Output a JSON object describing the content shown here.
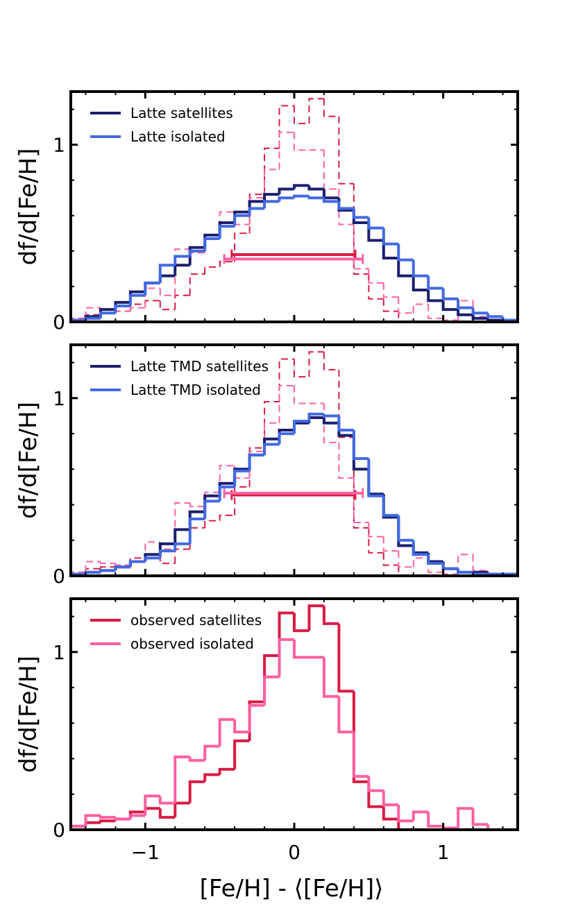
{
  "chart_data": [
    {
      "type": "step-histogram",
      "panel": "top",
      "xlim": [
        -1.5,
        1.5
      ],
      "ylim": [
        0,
        1.3
      ],
      "bin_edges": [
        -1.5,
        -1.4,
        -1.3,
        -1.2,
        -1.1,
        -1.0,
        -0.9,
        -0.8,
        -0.7,
        -0.6,
        -0.5,
        -0.4,
        -0.3,
        -0.2,
        -0.1,
        0.0,
        0.1,
        0.2,
        0.3,
        0.4,
        0.5,
        0.6,
        0.7,
        0.8,
        0.9,
        1.0,
        1.1,
        1.2,
        1.3,
        1.4,
        1.5
      ],
      "ylabel": "df/d[Fe/H]",
      "yticks": [
        {
          "value": 0,
          "label": "0"
        },
        {
          "value": 1,
          "label": "1"
        }
      ],
      "series": [
        {
          "name": "Latte satellites",
          "color": "#1a1f6e",
          "style": "solid",
          "legend": true,
          "values": [
            0.01,
            0.03,
            0.07,
            0.11,
            0.17,
            0.22,
            0.26,
            0.32,
            0.42,
            0.49,
            0.56,
            0.62,
            0.68,
            0.72,
            0.75,
            0.77,
            0.75,
            0.7,
            0.63,
            0.56,
            0.46,
            0.36,
            0.26,
            0.18,
            0.12,
            0.07,
            0.04,
            0.02,
            0.01,
            0.01
          ]
        },
        {
          "name": "Latte isolated",
          "color": "#4169e1",
          "style": "solid",
          "legend": true,
          "values": [
            0.01,
            0.02,
            0.05,
            0.09,
            0.15,
            0.22,
            0.32,
            0.37,
            0.4,
            0.47,
            0.54,
            0.6,
            0.64,
            0.68,
            0.7,
            0.71,
            0.7,
            0.68,
            0.64,
            0.59,
            0.53,
            0.44,
            0.35,
            0.26,
            0.19,
            0.13,
            0.08,
            0.05,
            0.03,
            0.01
          ]
        },
        {
          "name": "observed satellites",
          "color": "#d81b43",
          "style": "dashed",
          "legend": false,
          "values": [
            0.02,
            0.04,
            0.05,
            0.06,
            0.1,
            0.12,
            0.07,
            0.15,
            0.27,
            0.31,
            0.34,
            0.5,
            0.72,
            0.98,
            1.22,
            1.12,
            1.26,
            1.16,
            0.78,
            0.27,
            0.13,
            0.06,
            0.0,
            0.0,
            0.0,
            0.0,
            0.0,
            0.0,
            0.0,
            0.0
          ]
        },
        {
          "name": "observed isolated",
          "color": "#ff5fa2",
          "style": "dashed",
          "legend": false,
          "values": [
            0.02,
            0.08,
            0.07,
            0.06,
            0.08,
            0.19,
            0.15,
            0.41,
            0.39,
            0.47,
            0.62,
            0.55,
            0.7,
            0.86,
            1.07,
            0.97,
            0.97,
            0.75,
            0.55,
            0.3,
            0.22,
            0.14,
            0.05,
            0.1,
            0.02,
            0.01,
            0.12,
            0.03,
            0.0,
            0.0
          ]
        }
      ],
      "range_bars": [
        {
          "y": 0.38,
          "xmin": -0.42,
          "xmax": 0.41,
          "color": "#d81b43"
        },
        {
          "y": 0.355,
          "xmin": -0.47,
          "xmax": 0.46,
          "color": "#ff5fa2"
        }
      ],
      "legend": [
        {
          "label": "Latte satellites",
          "color": "#1a1f6e"
        },
        {
          "label": "Latte isolated",
          "color": "#4169e1"
        }
      ]
    },
    {
      "type": "step-histogram",
      "panel": "middle",
      "xlim": [
        -1.5,
        1.5
      ],
      "ylim": [
        0,
        1.3
      ],
      "bin_edges": [
        -1.5,
        -1.4,
        -1.3,
        -1.2,
        -1.1,
        -1.0,
        -0.9,
        -0.8,
        -0.7,
        -0.6,
        -0.5,
        -0.4,
        -0.3,
        -0.2,
        -0.1,
        0.0,
        0.1,
        0.2,
        0.3,
        0.4,
        0.5,
        0.6,
        0.7,
        0.8,
        0.9,
        1.0,
        1.1,
        1.2,
        1.3,
        1.4,
        1.5
      ],
      "ylabel": "df/d[Fe/H]",
      "yticks": [
        {
          "value": 0,
          "label": "0"
        },
        {
          "value": 1,
          "label": "1"
        }
      ],
      "series": [
        {
          "name": "Latte TMD satellites",
          "color": "#1a1f6e",
          "style": "solid",
          "legend": true,
          "values": [
            0.01,
            0.02,
            0.03,
            0.05,
            0.08,
            0.12,
            0.18,
            0.26,
            0.36,
            0.45,
            0.52,
            0.6,
            0.68,
            0.77,
            0.82,
            0.86,
            0.89,
            0.86,
            0.79,
            0.6,
            0.46,
            0.33,
            0.17,
            0.13,
            0.08,
            0.04,
            0.02,
            0.02,
            0.01,
            0.01
          ]
        },
        {
          "name": "Latte TMD isolated",
          "color": "#4169e1",
          "style": "solid",
          "legend": true,
          "values": [
            0.01,
            0.02,
            0.03,
            0.05,
            0.08,
            0.1,
            0.14,
            0.18,
            0.32,
            0.42,
            0.5,
            0.59,
            0.68,
            0.74,
            0.8,
            0.87,
            0.91,
            0.9,
            0.82,
            0.66,
            0.45,
            0.34,
            0.2,
            0.12,
            0.07,
            0.04,
            0.02,
            0.01,
            0.01,
            0.01
          ]
        },
        {
          "name": "observed satellites",
          "color": "#d81b43",
          "style": "dashed",
          "legend": false,
          "values": [
            0.02,
            0.04,
            0.05,
            0.06,
            0.1,
            0.12,
            0.07,
            0.15,
            0.27,
            0.31,
            0.34,
            0.5,
            0.72,
            0.98,
            1.22,
            1.12,
            1.26,
            1.16,
            0.78,
            0.27,
            0.13,
            0.06,
            0.0,
            0.0,
            0.0,
            0.0,
            0.0,
            0.0,
            0.0,
            0.0
          ]
        },
        {
          "name": "observed isolated",
          "color": "#ff5fa2",
          "style": "dashed",
          "legend": false,
          "values": [
            0.02,
            0.08,
            0.07,
            0.06,
            0.08,
            0.19,
            0.15,
            0.41,
            0.39,
            0.47,
            0.62,
            0.55,
            0.7,
            0.86,
            1.07,
            0.97,
            0.97,
            0.75,
            0.55,
            0.3,
            0.22,
            0.14,
            0.05,
            0.1,
            0.02,
            0.01,
            0.12,
            0.03,
            0.0,
            0.0
          ]
        }
      ],
      "range_bars": [
        {
          "y": 0.455,
          "xmin": -0.42,
          "xmax": 0.41,
          "color": "#d81b43"
        },
        {
          "y": 0.465,
          "xmin": -0.47,
          "xmax": 0.46,
          "color": "#ff5fa2"
        }
      ],
      "legend": [
        {
          "label": "Latte TMD satellites",
          "color": "#1a1f6e"
        },
        {
          "label": "Latte TMD isolated",
          "color": "#4169e1"
        }
      ]
    },
    {
      "type": "step-histogram",
      "panel": "bottom",
      "xlim": [
        -1.5,
        1.5
      ],
      "ylim": [
        0,
        1.3
      ],
      "bin_edges": [
        -1.5,
        -1.4,
        -1.3,
        -1.2,
        -1.1,
        -1.0,
        -0.9,
        -0.8,
        -0.7,
        -0.6,
        -0.5,
        -0.4,
        -0.3,
        -0.2,
        -0.1,
        0.0,
        0.1,
        0.2,
        0.3,
        0.4,
        0.5,
        0.6,
        0.7,
        0.8,
        0.9,
        1.0,
        1.1,
        1.2,
        1.3,
        1.4,
        1.5
      ],
      "ylabel": "df/d[Fe/H]",
      "xlabel": "[Fe/H] - ⟨[Fe/H]⟩",
      "yticks": [
        {
          "value": 0,
          "label": "0"
        },
        {
          "value": 1,
          "label": "1"
        }
      ],
      "xticks": [
        {
          "value": -1,
          "label": "−1"
        },
        {
          "value": 0,
          "label": "0"
        },
        {
          "value": 1,
          "label": "1"
        }
      ],
      "series": [
        {
          "name": "observed satellites",
          "color": "#d81b43",
          "style": "solid",
          "legend": true,
          "values": [
            0.02,
            0.04,
            0.05,
            0.06,
            0.1,
            0.12,
            0.07,
            0.15,
            0.27,
            0.31,
            0.34,
            0.5,
            0.72,
            0.98,
            1.22,
            1.12,
            1.26,
            1.16,
            0.78,
            0.27,
            0.13,
            0.06,
            0.0,
            0.0,
            0.0,
            0.0,
            0.0,
            0.0,
            0.0,
            0.0
          ]
        },
        {
          "name": "observed isolated",
          "color": "#ff5fa2",
          "style": "solid",
          "legend": true,
          "values": [
            0.02,
            0.08,
            0.07,
            0.06,
            0.08,
            0.19,
            0.15,
            0.41,
            0.39,
            0.47,
            0.62,
            0.55,
            0.7,
            0.86,
            1.07,
            0.97,
            0.97,
            0.75,
            0.55,
            0.3,
            0.22,
            0.14,
            0.05,
            0.1,
            0.02,
            0.01,
            0.12,
            0.03,
            0.0,
            0.0
          ]
        }
      ],
      "range_bars": [],
      "legend": [
        {
          "label": "observed satellites",
          "color": "#d81b43"
        },
        {
          "label": "observed isolated",
          "color": "#ff5fa2"
        }
      ]
    }
  ]
}
